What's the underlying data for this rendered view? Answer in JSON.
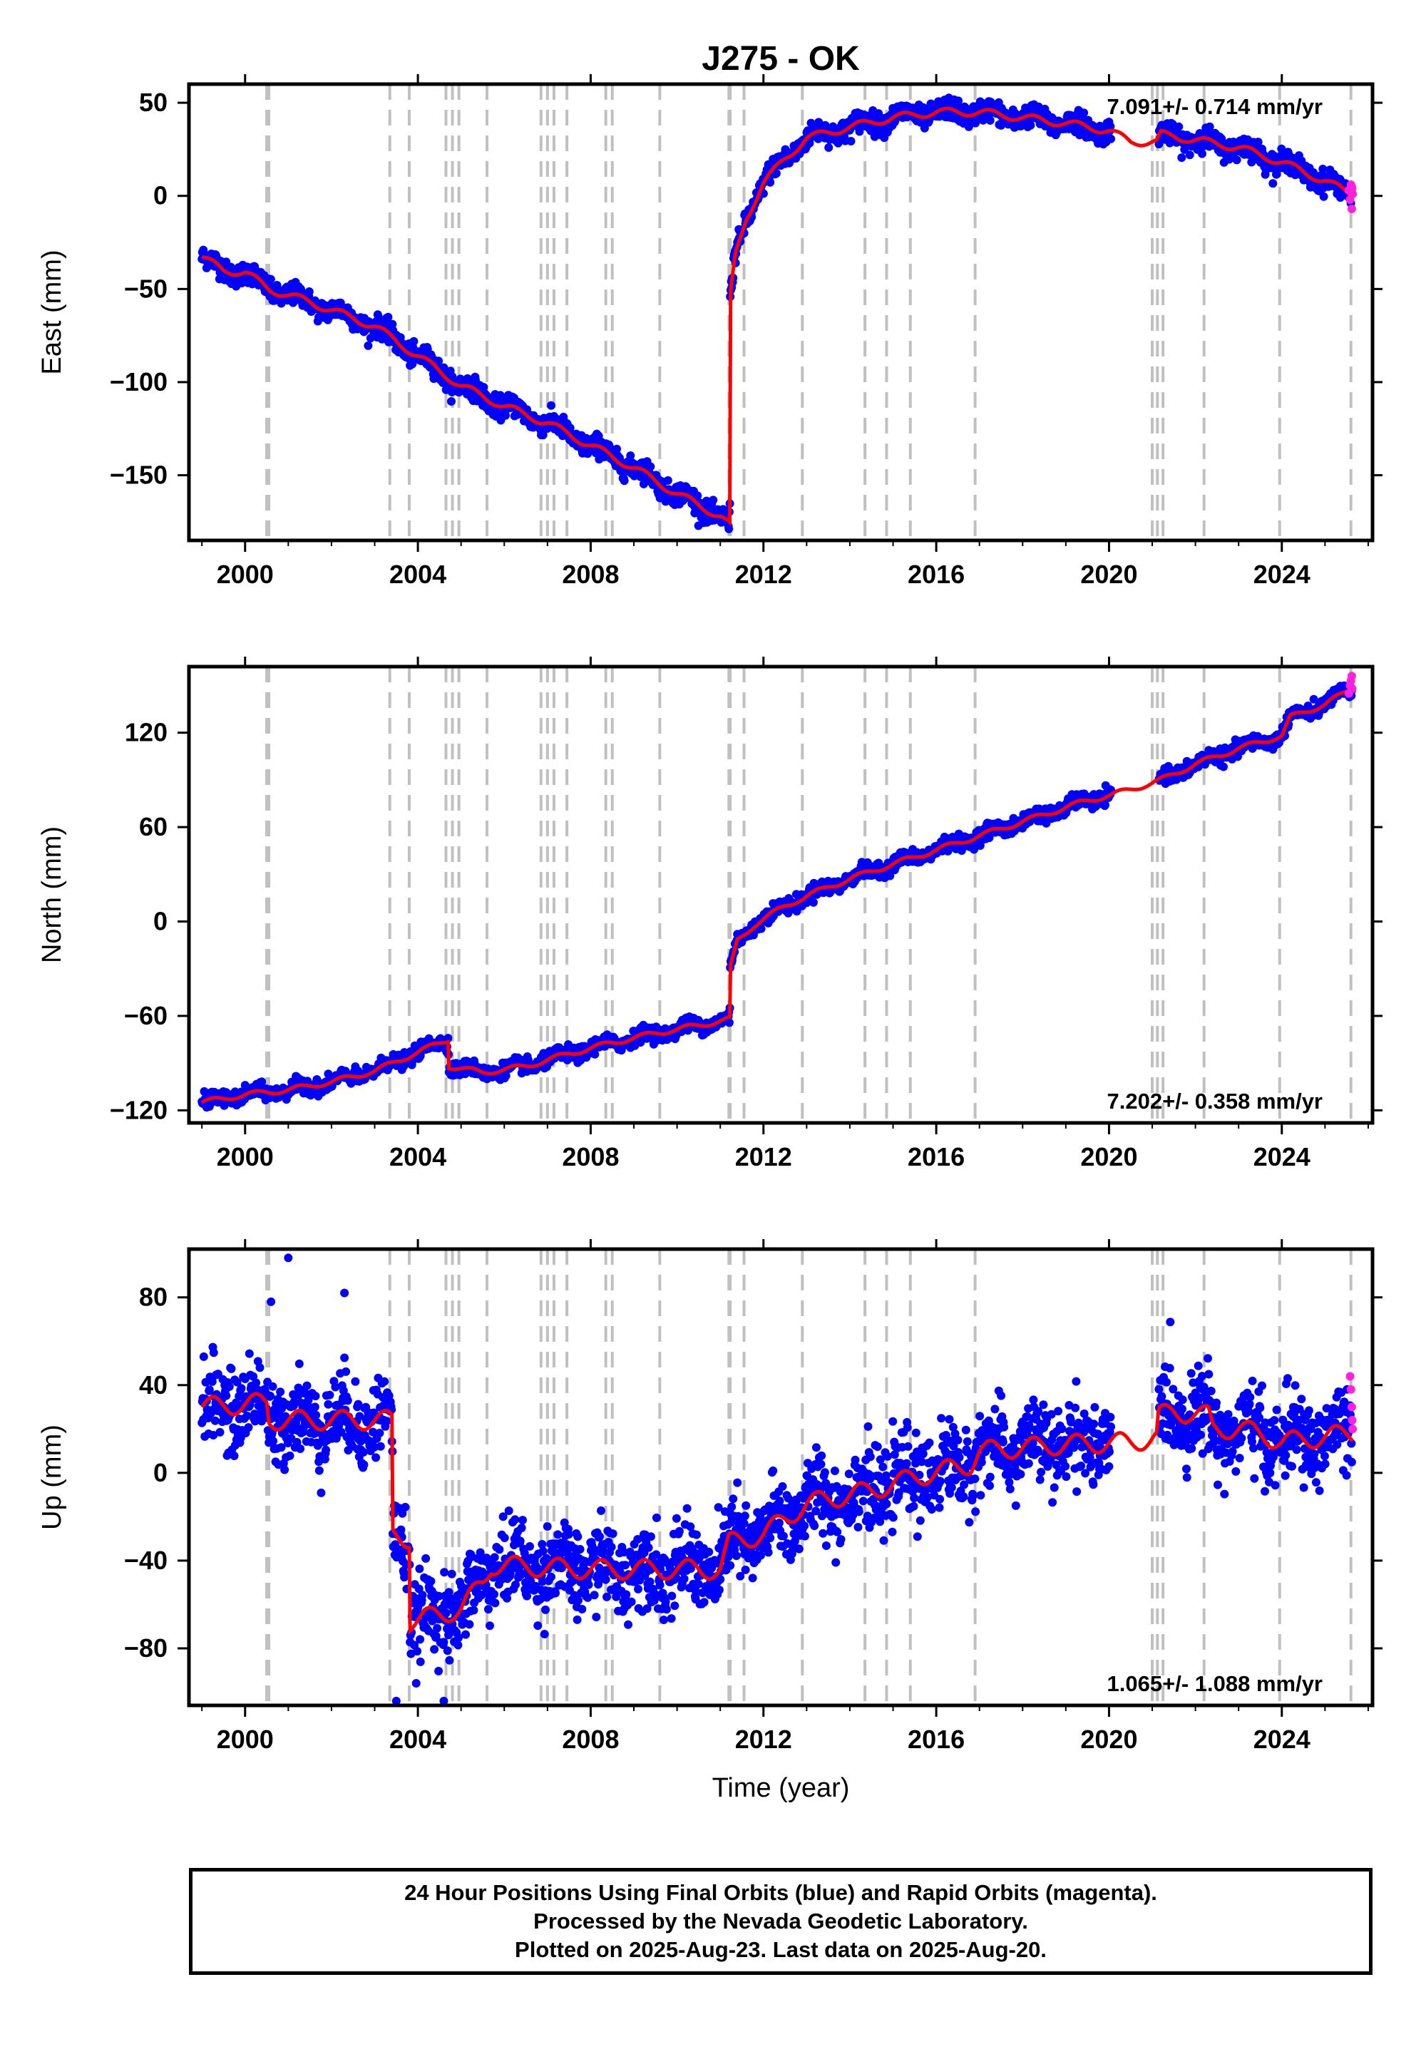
{
  "title": "J275 - OK",
  "xlabel": "Time (year)",
  "caption": [
    "24 Hour Positions Using Final Orbits (blue) and Rapid Orbits (magenta).",
    "Processed by the Nevada Geodetic Laboratory.",
    "Plotted on 2025-Aug-23. Last data on 2025-Aug-20."
  ],
  "colors": {
    "final": "#0000ff",
    "rapid": "#ff22dd",
    "model": "#ff0000",
    "steps": "#c0c0c0"
  },
  "chart_data": [
    {
      "type": "scatter",
      "ylabel": "East (mm)",
      "rate_label": "7.091+/- 0.714 mm/yr",
      "rate_position": "top-right",
      "xlim": [
        1998.7,
        2026.1
      ],
      "ylim": [
        -185,
        60
      ],
      "xticks": [
        2000,
        2004,
        2008,
        2012,
        2016,
        2020,
        2024
      ],
      "yticks": [
        50,
        0,
        -50,
        -100,
        -150
      ],
      "ytick_labels": [
        "50",
        "0",
        "−50",
        "−100",
        "−150"
      ],
      "model_knots": [
        [
          1999.0,
          -33
        ],
        [
          1999.5,
          -40
        ],
        [
          2000.0,
          -41
        ],
        [
          2000.55,
          -50
        ],
        [
          2001.5,
          -57
        ],
        [
          2003.0,
          -70
        ],
        [
          2004.0,
          -86
        ],
        [
          2005.0,
          -102
        ],
        [
          2006.0,
          -113
        ],
        [
          2007.0,
          -122
        ],
        [
          2008.0,
          -134
        ],
        [
          2009.0,
          -146
        ],
        [
          2010.0,
          -160
        ],
        [
          2011.0,
          -172
        ],
        [
          2011.22,
          -177
        ],
        [
          2011.23,
          -55
        ],
        [
          2011.35,
          -32
        ],
        [
          2011.6,
          -12
        ],
        [
          2012.0,
          7
        ],
        [
          2012.5,
          20
        ],
        [
          2013.0,
          31
        ],
        [
          2014.0,
          37
        ],
        [
          2015.0,
          42
        ],
        [
          2016.0,
          45
        ],
        [
          2017.0,
          45
        ],
        [
          2018.0,
          42
        ],
        [
          2019.0,
          39
        ],
        [
          2020.0,
          35
        ],
        [
          2020.5,
          29
        ],
        [
          2021.1,
          29
        ],
        [
          2021.2,
          33
        ],
        [
          2022.0,
          30
        ],
        [
          2023.0,
          26
        ],
        [
          2024.0,
          18
        ],
        [
          2025.0,
          8
        ],
        [
          2025.6,
          1
        ]
      ],
      "gaps": [
        [
          2020.05,
          2021.15
        ]
      ],
      "noise_mm": 2.8,
      "seasonal_mm": 2.5,
      "rapid_points": [
        [
          2025.55,
          3
        ],
        [
          2025.58,
          -2
        ],
        [
          2025.6,
          6
        ],
        [
          2025.62,
          -7
        ],
        [
          2025.63,
          4
        ],
        [
          2025.64,
          1
        ]
      ]
    },
    {
      "type": "scatter",
      "ylabel": "North (mm)",
      "rate_label": "7.202+/- 0.358 mm/yr",
      "rate_position": "bottom-right",
      "xlim": [
        1998.7,
        2026.1
      ],
      "ylim": [
        -128,
        162
      ],
      "xticks": [
        2000,
        2004,
        2008,
        2012,
        2016,
        2020,
        2024
      ],
      "yticks": [
        120,
        60,
        0,
        -60,
        -120
      ],
      "ytick_labels": [
        "120",
        "60",
        "0",
        "−60",
        "−120"
      ],
      "model_knots": [
        [
          1999.0,
          -115
        ],
        [
          2000.0,
          -110
        ],
        [
          2001.0,
          -107
        ],
        [
          2002.0,
          -102
        ],
        [
          2003.0,
          -95
        ],
        [
          2004.0,
          -83
        ],
        [
          2004.7,
          -75
        ],
        [
          2004.72,
          -92
        ],
        [
          2005.5,
          -96
        ],
        [
          2006.5,
          -92
        ],
        [
          2007.5,
          -84
        ],
        [
          2008.5,
          -77
        ],
        [
          2009.5,
          -71
        ],
        [
          2010.5,
          -66
        ],
        [
          2011.22,
          -62
        ],
        [
          2011.23,
          -30
        ],
        [
          2011.4,
          -12
        ],
        [
          2011.8,
          -2
        ],
        [
          2012.5,
          10
        ],
        [
          2013.5,
          22
        ],
        [
          2014.5,
          32
        ],
        [
          2015.5,
          41
        ],
        [
          2016.5,
          50
        ],
        [
          2017.5,
          59
        ],
        [
          2018.5,
          68
        ],
        [
          2019.5,
          77
        ],
        [
          2020.0,
          80
        ],
        [
          2021.0,
          88
        ],
        [
          2021.2,
          90
        ],
        [
          2022.0,
          100
        ],
        [
          2023.0,
          110
        ],
        [
          2024.0,
          118
        ],
        [
          2024.2,
          130
        ],
        [
          2025.0,
          138
        ],
        [
          2025.62,
          148
        ]
      ],
      "gaps": [
        [
          2020.05,
          2021.15
        ]
      ],
      "noise_mm": 2.2,
      "seasonal_mm": 2.0,
      "rapid_points": [
        [
          2025.55,
          145
        ],
        [
          2025.58,
          150
        ],
        [
          2025.6,
          153
        ],
        [
          2025.62,
          156
        ],
        [
          2025.63,
          148
        ]
      ]
    },
    {
      "type": "scatter",
      "ylabel": "Up (mm)",
      "rate_label": "1.065+/- 1.088 mm/yr",
      "rate_position": "bottom-right",
      "xlim": [
        1998.7,
        2026.1
      ],
      "ylim": [
        -106,
        102
      ],
      "xticks": [
        2000,
        2004,
        2008,
        2012,
        2016,
        2020,
        2024
      ],
      "yticks": [
        80,
        40,
        0,
        -40,
        -80
      ],
      "ytick_labels": [
        "80",
        "40",
        "0",
        "−40",
        "−80"
      ],
      "model_knots": [
        [
          1999.0,
          30
        ],
        [
          2000.5,
          32
        ],
        [
          2000.55,
          24
        ],
        [
          2003.4,
          24
        ],
        [
          2003.42,
          -28
        ],
        [
          2003.8,
          -30
        ],
        [
          2003.82,
          -68
        ],
        [
          2005.0,
          -62
        ],
        [
          2005.5,
          -50
        ],
        [
          2005.7,
          -42
        ],
        [
          2008.0,
          -44
        ],
        [
          2011.0,
          -44
        ],
        [
          2011.2,
          -32
        ],
        [
          2012.0,
          -28
        ],
        [
          2013.0,
          -14
        ],
        [
          2014.5,
          -8
        ],
        [
          2015.5,
          -2
        ],
        [
          2016.8,
          4
        ],
        [
          2017.0,
          10
        ],
        [
          2019.0,
          13
        ],
        [
          2020.5,
          14
        ],
        [
          2021.1,
          16
        ],
        [
          2021.15,
          26
        ],
        [
          2021.5,
          28
        ],
        [
          2022.3,
          26
        ],
        [
          2022.4,
          20
        ],
        [
          2023.0,
          20
        ],
        [
          2023.5,
          18
        ],
        [
          2024.0,
          14
        ],
        [
          2025.62,
          18
        ]
      ],
      "gaps": [
        [
          2020.05,
          2021.15
        ]
      ],
      "noise_mm": 9.0,
      "seasonal_mm": 5.5,
      "outliers": [
        [
          2001.0,
          98
        ],
        [
          2002.3,
          82
        ],
        [
          2003.5,
          -104
        ],
        [
          2004.6,
          -104
        ],
        [
          2000.6,
          78
        ]
      ],
      "rapid_points": [
        [
          2025.58,
          44
        ],
        [
          2025.6,
          38
        ],
        [
          2025.62,
          30
        ],
        [
          2025.63,
          24
        ],
        [
          2025.64,
          20
        ]
      ]
    }
  ],
  "step_epochs": [
    2000.5,
    2000.55,
    2003.35,
    2003.8,
    2004.65,
    2004.8,
    2004.95,
    2005.6,
    2006.85,
    2007.0,
    2007.15,
    2007.45,
    2008.35,
    2008.5,
    2009.6,
    2011.2,
    2011.23,
    2011.55,
    2012.9,
    2014.35,
    2014.85,
    2015.4,
    2016.9,
    2021.0,
    2021.12,
    2021.25,
    2022.2,
    2023.95,
    2025.6
  ]
}
